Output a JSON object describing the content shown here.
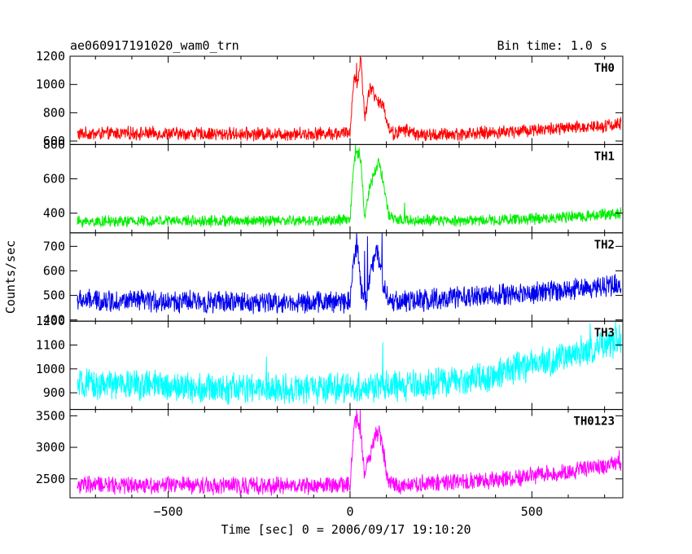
{
  "title_left": "ae060917191020_wam0_trn",
  "title_right": "Bin time: 1.0 s",
  "chart_data": {
    "type": "line",
    "xlabel": "Time [sec] 0 = 2006/09/17 19:10:20",
    "ylabel": "Counts/sec",
    "xlim": [
      -770,
      750
    ],
    "x_ticks": [
      -500,
      0,
      500
    ],
    "x_tick_labels": [
      "−500",
      "0",
      "500"
    ],
    "data_range": [
      -750,
      745
    ],
    "grid": false,
    "panels": [
      {
        "name": "TH0",
        "color": "#ff0000",
        "ylim": [
          575,
          1200
        ],
        "y_ticks": [
          600,
          800,
          1000,
          1200
        ],
        "y_tick_labels": [
          "600",
          "800",
          "1000",
          "1200"
        ],
        "keypoints": [
          [
            -750,
            650
          ],
          [
            -600,
            655
          ],
          [
            -400,
            650
          ],
          [
            -200,
            650
          ],
          [
            -20,
            655
          ],
          [
            0,
            660
          ],
          [
            10,
            1050
          ],
          [
            20,
            1000
          ],
          [
            30,
            1180
          ],
          [
            40,
            760
          ],
          [
            55,
            990
          ],
          [
            70,
            900
          ],
          [
            80,
            860
          ],
          [
            90,
            880
          ],
          [
            105,
            700
          ],
          [
            120,
            650
          ],
          [
            150,
            680
          ],
          [
            200,
            640
          ],
          [
            300,
            650
          ],
          [
            400,
            660
          ],
          [
            500,
            680
          ],
          [
            600,
            690
          ],
          [
            745,
            720
          ]
        ],
        "noise": 40,
        "spikes": [
          [
            28,
            1200
          ],
          [
            18,
            1150
          ],
          [
            62,
            990
          ]
        ]
      },
      {
        "name": "TH1",
        "color": "#00ee00",
        "ylim": [
          285,
          800
        ],
        "y_ticks": [
          400,
          600,
          800
        ],
        "y_tick_labels": [
          "400",
          "600",
          "800"
        ],
        "keypoints": [
          [
            -750,
            350
          ],
          [
            -500,
            355
          ],
          [
            -200,
            355
          ],
          [
            -20,
            358
          ],
          [
            0,
            360
          ],
          [
            10,
            700
          ],
          [
            20,
            760
          ],
          [
            30,
            700
          ],
          [
            40,
            380
          ],
          [
            55,
            560
          ],
          [
            70,
            650
          ],
          [
            80,
            700
          ],
          [
            90,
            600
          ],
          [
            105,
            400
          ],
          [
            120,
            360
          ],
          [
            200,
            355
          ],
          [
            400,
            360
          ],
          [
            600,
            375
          ],
          [
            745,
            400
          ]
        ],
        "noise": 28,
        "spikes": [
          [
            15,
            800
          ],
          [
            25,
            780
          ],
          [
            78,
            720
          ],
          [
            150,
            460
          ]
        ]
      },
      {
        "name": "TH2",
        "color": "#0000ee",
        "ylim": [
          395,
          755
        ],
        "y_ticks": [
          400,
          500,
          600,
          700
        ],
        "y_tick_labels": [
          "400",
          "500",
          "600",
          "700"
        ],
        "keypoints": [
          [
            -750,
            480
          ],
          [
            -500,
            475
          ],
          [
            -200,
            470
          ],
          [
            -20,
            475
          ],
          [
            0,
            480
          ],
          [
            10,
            660
          ],
          [
            20,
            700
          ],
          [
            30,
            520
          ],
          [
            45,
            480
          ],
          [
            60,
            620
          ],
          [
            75,
            680
          ],
          [
            90,
            560
          ],
          [
            105,
            480
          ],
          [
            150,
            475
          ],
          [
            300,
            490
          ],
          [
            500,
            510
          ],
          [
            745,
            545
          ]
        ],
        "noise": 38,
        "spikes": [
          [
            18,
            755
          ],
          [
            48,
            740
          ],
          [
            88,
            755
          ],
          [
            40,
            680
          ]
        ]
      },
      {
        "name": "TH3",
        "color": "#00ffff",
        "ylim": [
          830,
          1200
        ],
        "y_ticks": [
          900,
          1000,
          1100,
          1200
        ],
        "y_tick_labels": [
          "900",
          "1000",
          "1100",
          "1200"
        ],
        "keypoints": [
          [
            -750,
            930
          ],
          [
            -600,
            935
          ],
          [
            -400,
            920
          ],
          [
            -200,
            915
          ],
          [
            0,
            920
          ],
          [
            200,
            930
          ],
          [
            350,
            960
          ],
          [
            450,
            1000
          ],
          [
            550,
            1030
          ],
          [
            650,
            1080
          ],
          [
            745,
            1120
          ]
        ],
        "noise": 55,
        "spikes": [
          [
            90,
            1110
          ],
          [
            -230,
            1050
          ],
          [
            660,
            1190
          ],
          [
            730,
            1195
          ]
        ]
      },
      {
        "name": "TH0123",
        "color": "#ff00ff",
        "ylim": [
          2200,
          3600
        ],
        "y_ticks": [
          2500,
          3000,
          3500
        ],
        "y_tick_labels": [
          "2500",
          "3000",
          "3500"
        ],
        "keypoints": [
          [
            -750,
            2400
          ],
          [
            -600,
            2405
          ],
          [
            -400,
            2395
          ],
          [
            -200,
            2390
          ],
          [
            -20,
            2400
          ],
          [
            0,
            2410
          ],
          [
            10,
            3300
          ],
          [
            20,
            3400
          ],
          [
            30,
            3200
          ],
          [
            40,
            2550
          ],
          [
            55,
            2900
          ],
          [
            70,
            3200
          ],
          [
            80,
            3250
          ],
          [
            90,
            3000
          ],
          [
            105,
            2450
          ],
          [
            120,
            2400
          ],
          [
            200,
            2430
          ],
          [
            400,
            2480
          ],
          [
            500,
            2550
          ],
          [
            600,
            2620
          ],
          [
            745,
            2750
          ]
        ],
        "noise": 120,
        "spikes": [
          [
            18,
            3600
          ],
          [
            28,
            3600
          ],
          [
            95,
            2900
          ],
          [
            740,
            2950
          ]
        ]
      }
    ]
  }
}
